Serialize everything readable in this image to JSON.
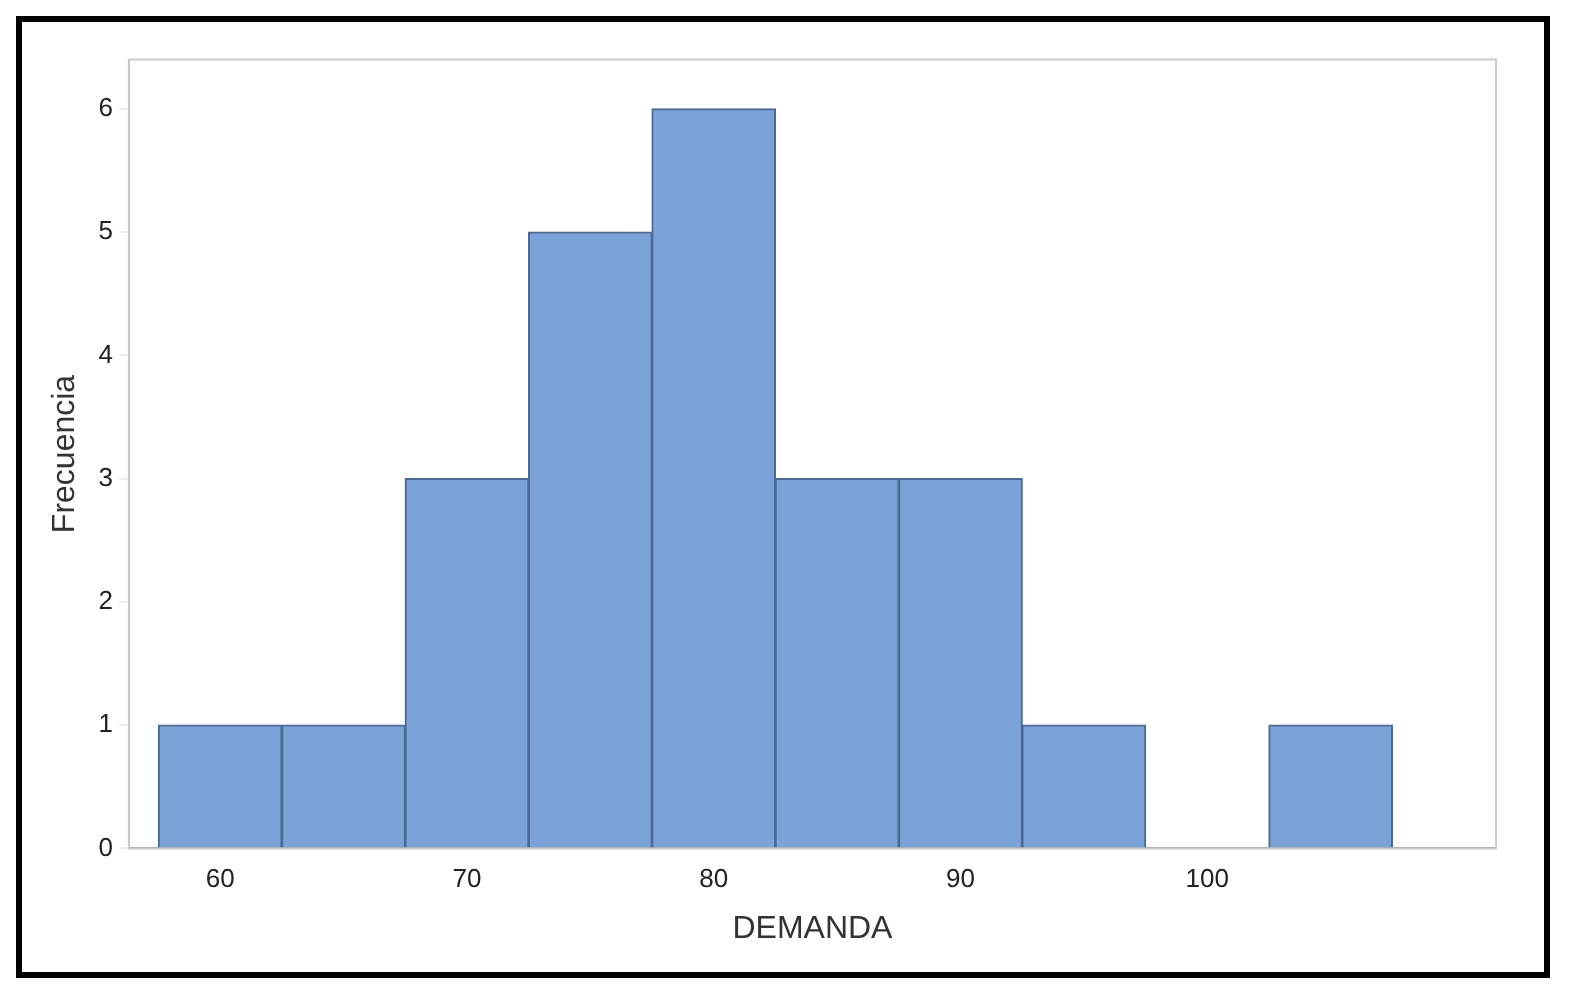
{
  "chart_data": {
    "type": "histogram",
    "xlabel": "DEMANDA",
    "ylabel": "Frecuencia",
    "bins": [
      57.5,
      62.5,
      67.5,
      72.5,
      77.5,
      82.5,
      87.5,
      92.5,
      97.5,
      102.5,
      107.5
    ],
    "values": [
      1,
      1,
      3,
      5,
      6,
      3,
      3,
      1,
      0,
      1
    ],
    "color": "#7ba3d8",
    "xlim": [
      56.3,
      111.7
    ],
    "xticks": [
      60,
      70,
      80,
      90,
      100
    ],
    "ylim": [
      0,
      6.4
    ],
    "yticks": [
      0,
      1,
      2,
      3,
      4,
      5,
      6
    ],
    "grid": false,
    "legend": false
  }
}
